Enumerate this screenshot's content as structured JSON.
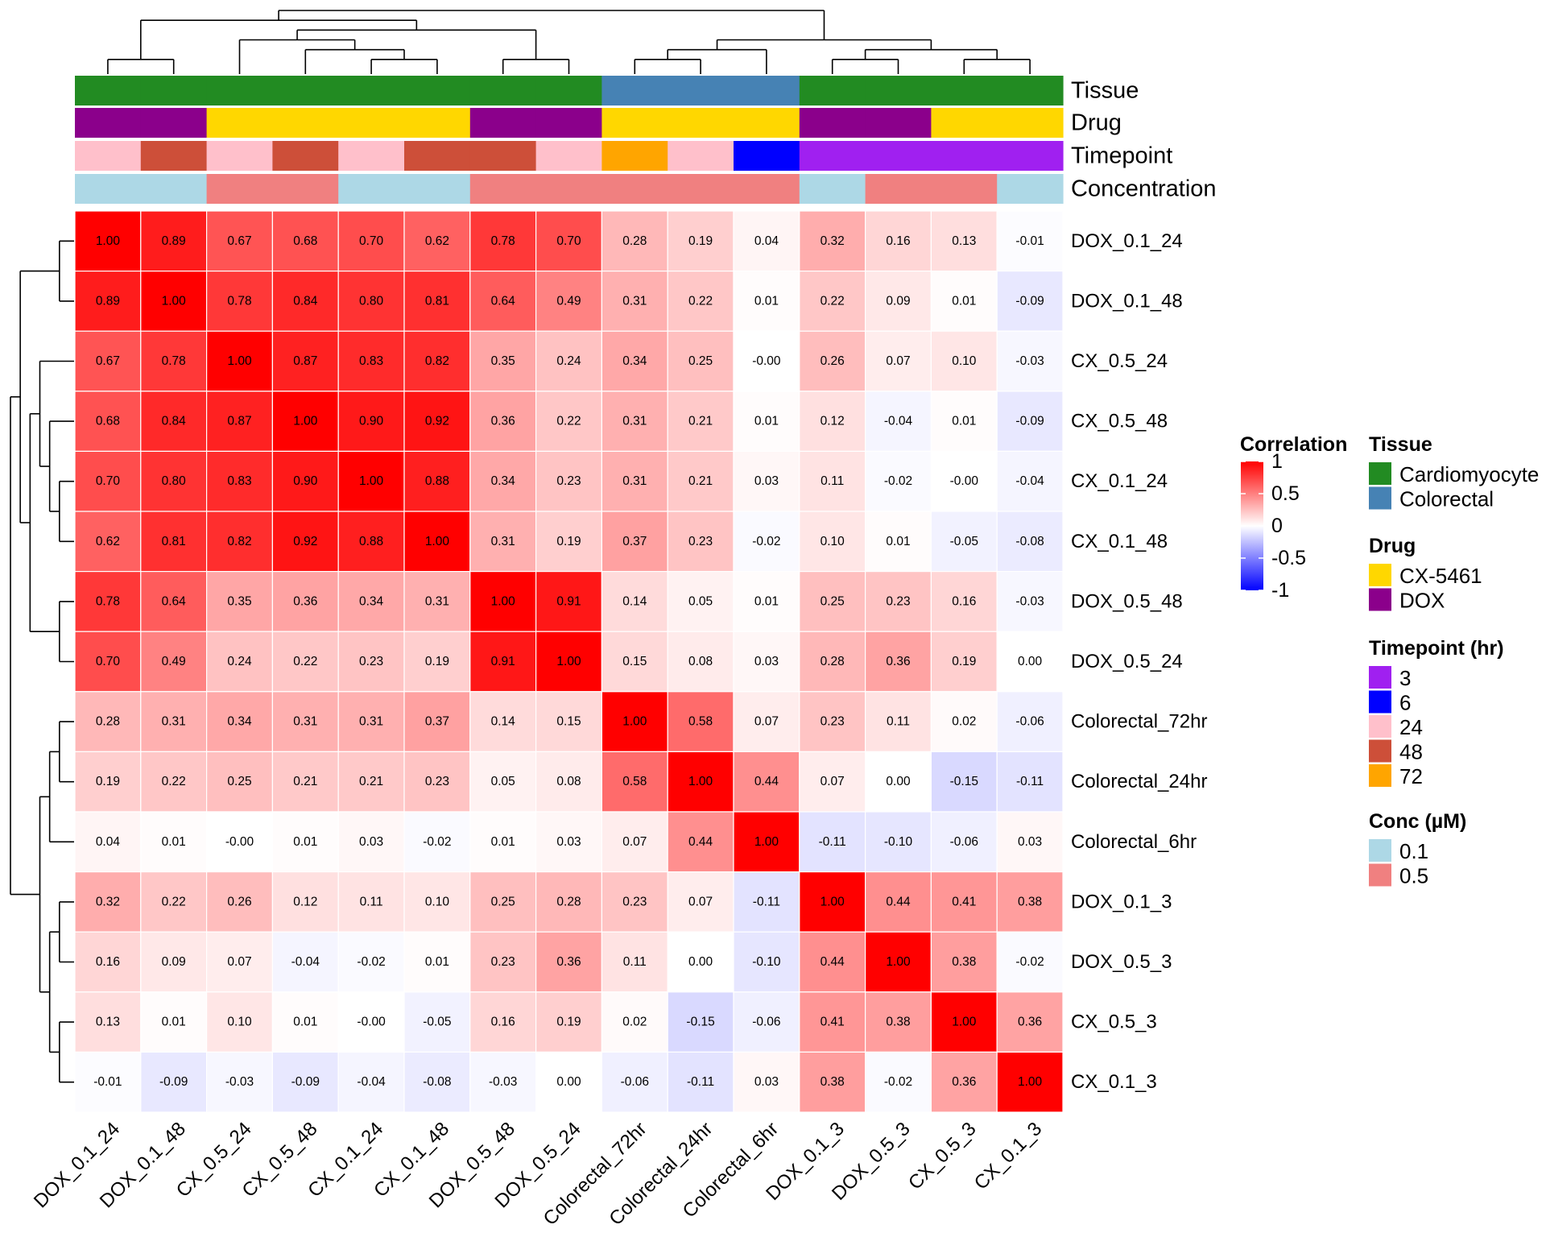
{
  "chart_data": {
    "type": "heatmap",
    "labels": [
      "DOX_0.1_24",
      "DOX_0.1_48",
      "CX_0.5_24",
      "CX_0.5_48",
      "CX_0.1_24",
      "CX_0.1_48",
      "DOX_0.5_48",
      "DOX_0.5_24",
      "Colorectal_72hr",
      "Colorectal_24hr",
      "Colorectal_6hr",
      "DOX_0.1_3",
      "DOX_0.5_3",
      "CX_0.5_3",
      "CX_0.1_3"
    ],
    "values": [
      [
        "1.00",
        "0.89",
        "0.67",
        "0.68",
        "0.70",
        "0.62",
        "0.78",
        "0.70",
        "0.28",
        "0.19",
        "0.04",
        "0.32",
        "0.16",
        "0.13",
        "-0.01"
      ],
      [
        "0.89",
        "1.00",
        "0.78",
        "0.84",
        "0.80",
        "0.81",
        "0.64",
        "0.49",
        "0.31",
        "0.22",
        "0.01",
        "0.22",
        "0.09",
        "0.01",
        "-0.09"
      ],
      [
        "0.67",
        "0.78",
        "1.00",
        "0.87",
        "0.83",
        "0.82",
        "0.35",
        "0.24",
        "0.34",
        "0.25",
        "-0.00",
        "0.26",
        "0.07",
        "0.10",
        "-0.03"
      ],
      [
        "0.68",
        "0.84",
        "0.87",
        "1.00",
        "0.90",
        "0.92",
        "0.36",
        "0.22",
        "0.31",
        "0.21",
        "0.01",
        "0.12",
        "-0.04",
        "0.01",
        "-0.09"
      ],
      [
        "0.70",
        "0.80",
        "0.83",
        "0.90",
        "1.00",
        "0.88",
        "0.34",
        "0.23",
        "0.31",
        "0.21",
        "0.03",
        "0.11",
        "-0.02",
        "-0.00",
        "-0.04"
      ],
      [
        "0.62",
        "0.81",
        "0.82",
        "0.92",
        "0.88",
        "1.00",
        "0.31",
        "0.19",
        "0.37",
        "0.23",
        "-0.02",
        "0.10",
        "0.01",
        "-0.05",
        "-0.08"
      ],
      [
        "0.78",
        "0.64",
        "0.35",
        "0.36",
        "0.34",
        "0.31",
        "1.00",
        "0.91",
        "0.14",
        "0.05",
        "0.01",
        "0.25",
        "0.23",
        "0.16",
        "-0.03"
      ],
      [
        "0.70",
        "0.49",
        "0.24",
        "0.22",
        "0.23",
        "0.19",
        "0.91",
        "1.00",
        "0.15",
        "0.08",
        "0.03",
        "0.28",
        "0.36",
        "0.19",
        "0.00"
      ],
      [
        "0.28",
        "0.31",
        "0.34",
        "0.31",
        "0.31",
        "0.37",
        "0.14",
        "0.15",
        "1.00",
        "0.58",
        "0.07",
        "0.23",
        "0.11",
        "0.02",
        "-0.06"
      ],
      [
        "0.19",
        "0.22",
        "0.25",
        "0.21",
        "0.21",
        "0.23",
        "0.05",
        "0.08",
        "0.58",
        "1.00",
        "0.44",
        "0.07",
        "0.00",
        "-0.15",
        "-0.11"
      ],
      [
        "0.04",
        "0.01",
        "-0.00",
        "0.01",
        "0.03",
        "-0.02",
        "0.01",
        "0.03",
        "0.07",
        "0.44",
        "1.00",
        "-0.11",
        "-0.10",
        "-0.06",
        "0.03"
      ],
      [
        "0.32",
        "0.22",
        "0.26",
        "0.12",
        "0.11",
        "0.10",
        "0.25",
        "0.28",
        "0.23",
        "0.07",
        "-0.11",
        "1.00",
        "0.44",
        "0.41",
        "0.38"
      ],
      [
        "0.16",
        "0.09",
        "0.07",
        "-0.04",
        "-0.02",
        "0.01",
        "0.23",
        "0.36",
        "0.11",
        "0.00",
        "-0.10",
        "0.44",
        "1.00",
        "0.38",
        "-0.02"
      ],
      [
        "0.13",
        "0.01",
        "0.10",
        "0.01",
        "-0.00",
        "-0.05",
        "0.16",
        "0.19",
        "0.02",
        "-0.15",
        "-0.06",
        "0.41",
        "0.38",
        "1.00",
        "0.36"
      ],
      [
        "-0.01",
        "-0.09",
        "-0.03",
        "-0.09",
        "-0.04",
        "-0.08",
        "-0.03",
        "0.00",
        "-0.06",
        "-0.11",
        "0.03",
        "0.38",
        "-0.02",
        "0.36",
        "1.00"
      ]
    ],
    "color_scale": {
      "title": "Correlation",
      "ticks": [
        "1",
        "0.5",
        "0",
        "-0.5",
        "-1"
      ],
      "min": -1,
      "max": 1,
      "low_color": "#0000ff",
      "mid_color": "#ffffff",
      "high_color": "#ff0000"
    },
    "annotation_tracks": [
      {
        "name": "Tissue",
        "values": [
          "Cardiomyocyte",
          "Cardiomyocyte",
          "Cardiomyocyte",
          "Cardiomyocyte",
          "Cardiomyocyte",
          "Cardiomyocyte",
          "Cardiomyocyte",
          "Cardiomyocyte",
          "Colorectal",
          "Colorectal",
          "Colorectal",
          "Cardiomyocyte",
          "Cardiomyocyte",
          "Cardiomyocyte",
          "Cardiomyocyte"
        ]
      },
      {
        "name": "Drug",
        "values": [
          "DOX",
          "DOX",
          "CX-5461",
          "CX-5461",
          "CX-5461",
          "CX-5461",
          "DOX",
          "DOX",
          "CX-5461",
          "CX-5461",
          "CX-5461",
          "DOX",
          "DOX",
          "CX-5461",
          "CX-5461"
        ]
      },
      {
        "name": "Timepoint",
        "values": [
          "24",
          "48",
          "24",
          "48",
          "24",
          "48",
          "48",
          "24",
          "72",
          "24",
          "6",
          "3",
          "3",
          "3",
          "3"
        ]
      },
      {
        "name": "Concentration",
        "values": [
          "0.1",
          "0.1",
          "0.5",
          "0.5",
          "0.1",
          "0.1",
          "0.5",
          "0.5",
          "0.5",
          "0.5",
          "0.5",
          "0.1",
          "0.5",
          "0.5",
          "0.1"
        ]
      }
    ],
    "legends": [
      {
        "title": "Tissue",
        "items": [
          {
            "label": "Cardiomyocyte",
            "color": "#228b22"
          },
          {
            "label": "Colorectal",
            "color": "#4682b4"
          }
        ]
      },
      {
        "title": "Drug",
        "items": [
          {
            "label": "CX-5461",
            "color": "#ffd700"
          },
          {
            "label": "DOX",
            "color": "#8b008b"
          }
        ]
      },
      {
        "title": "Timepoint (hr)",
        "items": [
          {
            "label": "3",
            "color": "#a020f0"
          },
          {
            "label": "6",
            "color": "#0000ff"
          },
          {
            "label": "24",
            "color": "#ffc0cb"
          },
          {
            "label": "48",
            "color": "#cd4f39"
          },
          {
            "label": "72",
            "color": "#ffa500"
          }
        ]
      },
      {
        "title": "Conc (µM)",
        "items": [
          {
            "label": "0.1",
            "color": "#add8e6"
          },
          {
            "label": "0.5",
            "color": "#f08080"
          }
        ]
      }
    ],
    "dendrogram_tree": [
      [
        [
          [
            0,
            1
          ],
          [
            [
              2,
              [
                3,
                [
                  4,
                  5
                ]
              ]
            ],
            [
              6,
              7
            ]
          ]
        ],
        [
          [
            [
              8,
              9
            ],
            10
          ],
          [
            [
              11,
              12
            ],
            [
              13,
              14
            ]
          ]
        ]
      ]
    ]
  }
}
